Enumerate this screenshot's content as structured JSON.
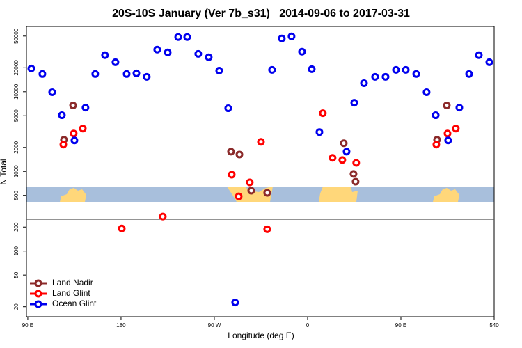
{
  "chart_data": {
    "type": "scatter",
    "title": "20S-10S January (Ver 7b_s31)   2014-09-06 to 2017-03-31",
    "x_label": "Longitude (deg E)",
    "y_label": "N Total",
    "log_y": true,
    "legend": "bottom left",
    "xlim": [
      88.7,
      540
    ],
    "ylim": [
      15,
      66000
    ],
    "xticks": [
      {
        "value": 90,
        "label": "90 E"
      },
      180,
      {
        "value": 270,
        "label": "90 W"
      },
      0,
      {
        "value": 450,
        "label": "90 E"
      },
      540
    ],
    "yticks": [
      20,
      50,
      100,
      200,
      500,
      1000,
      2000,
      5000,
      10000,
      20000,
      50000
    ],
    "reference_line": 250,
    "series": [
      {
        "name": "Land Nadir",
        "color": "#8b2a2a",
        "x": [
          124.9,
          133.7,
          286.1,
          294.2,
          305.6,
          321.0,
          394.9,
          404.3,
          406.3,
          484.9,
          494.3
        ],
        "values": [
          2500,
          6720,
          1770,
          1630,
          572,
          538,
          2260,
          929,
          743,
          2500,
          6720
        ]
      },
      {
        "name": "Land Glint",
        "color": "#ff0000",
        "x": [
          124.3,
          134.3,
          143.1,
          180.7,
          220.3,
          286.8,
          293.5,
          304.2,
          315.0,
          321.0,
          374.7,
          384.1,
          393.5,
          406.9,
          484.2,
          495.0,
          503.0
        ],
        "values": [
          2170,
          2990,
          3450,
          192,
          271,
          910,
          486,
          728,
          2350,
          188,
          5380,
          1480,
          1390,
          1280,
          2170,
          2990,
          3450
        ]
      },
      {
        "name": "Ocean Glint",
        "color": "#0000ee",
        "x": [
          93.4,
          104.1,
          113.5,
          122.9,
          135.0,
          145.7,
          155.1,
          164.5,
          174.6,
          185.4,
          194.8,
          204.8,
          214.9,
          225.0,
          235.1,
          243.8,
          254.5,
          264.6,
          274.7,
          283.4,
          290.1,
          325.7,
          335.1,
          344.5,
          354.6,
          364.0,
          371.4,
          397.6,
          405.0,
          414.4,
          425.1,
          435.2,
          445.3,
          454.7,
          464.8,
          474.8,
          483.6,
          495.6,
          506.4,
          515.8,
          525.2,
          535.3
        ],
        "values": [
          19600,
          16700,
          9860,
          5070,
          2450,
          6320,
          16700,
          28800,
          23500,
          16700,
          17000,
          15400,
          33800,
          31200,
          48600,
          48600,
          29900,
          27100,
          18400,
          6200,
          22.6,
          18800,
          46700,
          49600,
          31800,
          19200,
          3120,
          1770,
          7280,
          12800,
          15400,
          15400,
          18800,
          18800,
          16700,
          9860,
          5070,
          2450,
          6320,
          16700,
          28800,
          23500
        ]
      }
    ]
  }
}
